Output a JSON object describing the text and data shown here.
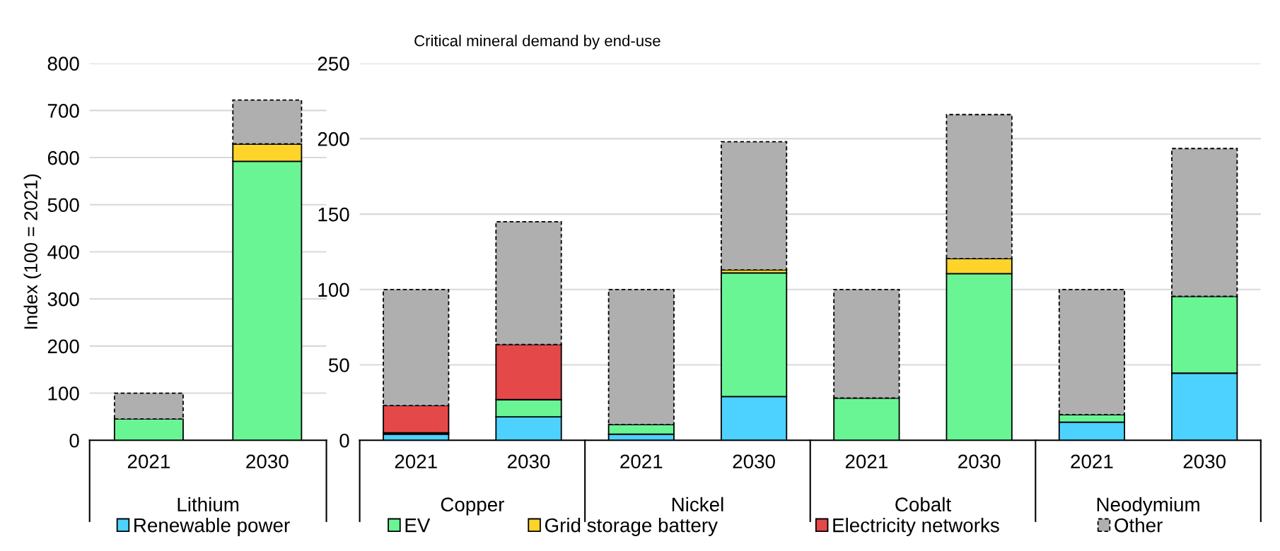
{
  "chart_data": [
    {
      "type": "bar",
      "stacked": true,
      "ylabel": "Index (100 = 2021)",
      "categories": [
        "2021",
        "2030"
      ],
      "annotations": [
        "Lithium"
      ],
      "ylim": [
        0,
        800
      ],
      "yticks": [
        0,
        100,
        200,
        300,
        400,
        500,
        600,
        700,
        800
      ],
      "grid": "y",
      "series": [
        {
          "color": "#4dd2ff",
          "values": [
            0,
            0
          ]
        },
        {
          "color": "#6af595",
          "values": [
            45,
            592
          ]
        },
        {
          "color": "#ffd42a",
          "values": [
            0,
            37
          ]
        },
        {
          "color": "#e54848",
          "values": [
            0,
            0
          ]
        },
        {
          "color": "#afafaf",
          "line_style": "dashed",
          "values": [
            55,
            93
          ]
        }
      ]
    },
    {
      "type": "bar",
      "stacked": true,
      "title": "Critical mineral demand by end-use",
      "categories": [
        "2021",
        "2030",
        "2021",
        "2030",
        "2021",
        "2030",
        "2021",
        "2030"
      ],
      "annotations": [
        "Copper",
        "Nickel",
        "Cobalt",
        "Neodymium"
      ],
      "ylim": [
        0,
        250
      ],
      "yticks": [
        0,
        50,
        100,
        150,
        200,
        250
      ],
      "grid": "y",
      "legend": "bottom",
      "series": [
        {
          "name": "Renewable power",
          "color": "#4dd2ff",
          "values": [
            4,
            15.5,
            4,
            29,
            0,
            0,
            12,
            44.5
          ]
        },
        {
          "name": "EV",
          "color": "#6af595",
          "values": [
            1,
            11.5,
            6.5,
            82,
            28,
            110.5,
            5,
            51
          ]
        },
        {
          "name": "Grid storage battery",
          "color": "#ffd42a",
          "values": [
            0,
            0,
            0,
            2,
            0,
            10,
            0,
            0
          ]
        },
        {
          "name": "Electricity networks",
          "color": "#e54848",
          "values": [
            18,
            36.5,
            0,
            0,
            0,
            0,
            0,
            0
          ]
        },
        {
          "name": "Other",
          "color": "#afafaf",
          "line_style": "dashed",
          "values": [
            77,
            81.5,
            89.5,
            85,
            72,
            95.5,
            83,
            98
          ]
        }
      ]
    }
  ]
}
